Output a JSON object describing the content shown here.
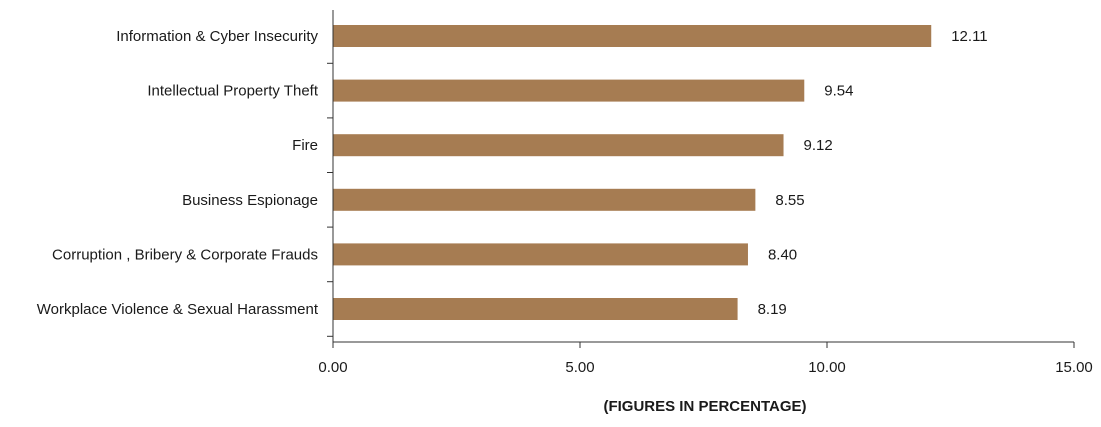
{
  "chart_data": {
    "type": "bar",
    "orientation": "horizontal",
    "categories": [
      "Information & Cyber Insecurity",
      "Intellectual Property Theft",
      "Fire",
      "Business Espionage",
      "Corruption , Bribery & Corporate Frauds",
      "Workplace Violence & Sexual Harassment"
    ],
    "values": [
      12.11,
      9.54,
      9.12,
      8.55,
      8.4,
      8.19
    ],
    "value_labels": [
      "12.11",
      "9.54",
      "9.12",
      "8.55",
      "8.40",
      "8.19"
    ],
    "xlim": [
      0,
      15
    ],
    "xticks": [
      0,
      5,
      10,
      15
    ],
    "xtick_labels": [
      "0.00",
      "5.00",
      "10.00",
      "15.00"
    ],
    "xlabel": "(FIGURES IN PERCENTAGE)",
    "title": "",
    "grid": false,
    "legend": "none",
    "colors": {
      "bar": "#A67C52",
      "axis": "#333333",
      "text": "#1a1a1a"
    }
  }
}
